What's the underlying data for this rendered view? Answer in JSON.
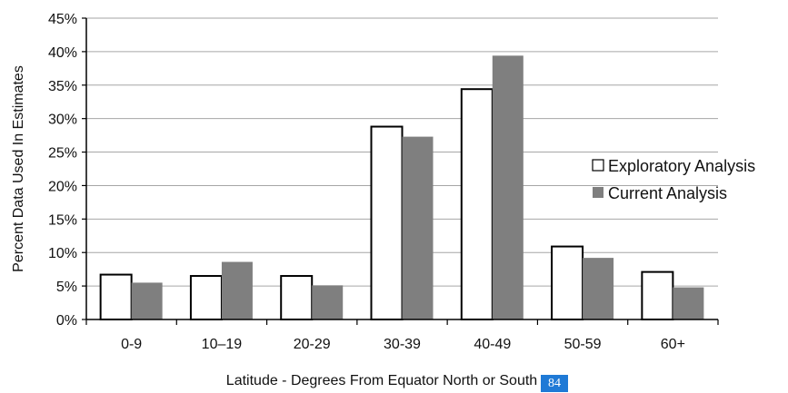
{
  "chart_data": {
    "type": "bar",
    "categories": [
      "0-9",
      "10–19",
      "20-29",
      "30-39",
      "40-49",
      "50-59",
      "60+"
    ],
    "series": [
      {
        "name": "Exploratory Analysis",
        "color": "#ffffff",
        "values": [
          6.7,
          6.5,
          6.5,
          28.8,
          34.4,
          10.9,
          7.1
        ]
      },
      {
        "name": "Current Analysis",
        "color": "#7f7f7f",
        "values": [
          5.5,
          8.6,
          5.1,
          27.3,
          39.4,
          9.2,
          4.8
        ]
      }
    ],
    "ylim": [
      0,
      45
    ],
    "yticks": [
      "0%",
      "5%",
      "10%",
      "15%",
      "20%",
      "25%",
      "30%",
      "35%",
      "40%",
      "45%"
    ],
    "xlabel": "Latitude - Degrees From Equator North or South",
    "ylabel": "Percent Data Used In Estimates",
    "grid": true,
    "legend": "right"
  },
  "page_number": "84"
}
